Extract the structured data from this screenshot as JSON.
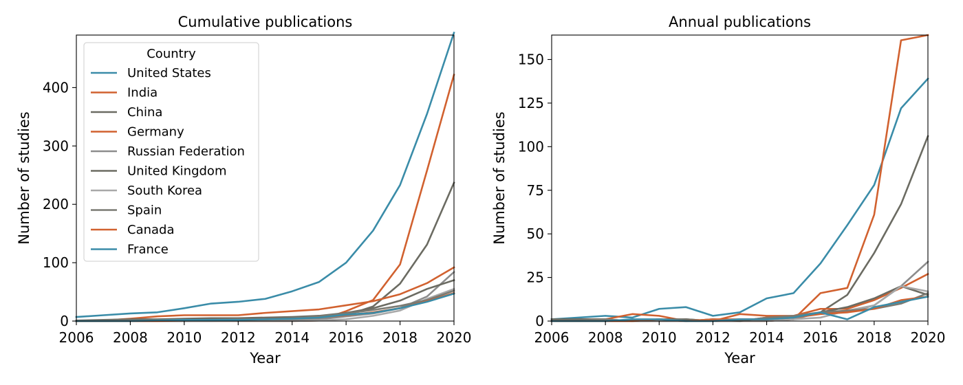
{
  "chart_data": [
    {
      "type": "line",
      "title": "Cumulative publications",
      "xlabel": "Year",
      "ylabel": "Number of studies",
      "xlim": [
        2006,
        2020
      ],
      "ylim": [
        0,
        490
      ],
      "xticks": [
        2006,
        2008,
        2010,
        2012,
        2014,
        2016,
        2018,
        2020
      ],
      "yticks": [
        0,
        100,
        200,
        300,
        400
      ],
      "legend": {
        "title": "Country",
        "position": "upper-left"
      },
      "grid": false,
      "x": [
        2006,
        2007,
        2008,
        2009,
        2010,
        2011,
        2012,
        2013,
        2014,
        2015,
        2016,
        2017,
        2018,
        2019,
        2020
      ],
      "series": [
        {
          "name": "United States",
          "color": "#3a8ca8",
          "values": [
            7,
            10,
            13,
            15,
            22,
            30,
            33,
            38,
            51,
            67,
            100,
            155,
            233,
            355,
            494
          ]
        },
        {
          "name": "India",
          "color": "#d1612f",
          "values": [
            0,
            0,
            0,
            0,
            0,
            0,
            0,
            0,
            0,
            1,
            17,
            36,
            97,
            258,
            422
          ]
        },
        {
          "name": "China",
          "color": "#6b6b62",
          "values": [
            0,
            0,
            0,
            0,
            0,
            1,
            1,
            1,
            3,
            5,
            10,
            25,
            64,
            131,
            237
          ]
        },
        {
          "name": "Germany",
          "color": "#d1612f",
          "values": [
            0,
            1,
            4,
            8,
            10,
            10,
            10,
            14,
            17,
            20,
            27,
            34,
            46,
            65,
            92
          ]
        },
        {
          "name": "Russian Federation",
          "color": "#8c8c8c",
          "values": [
            0,
            0,
            0,
            0,
            0,
            0,
            1,
            1,
            2,
            3,
            8,
            13,
            22,
            42,
            84
          ]
        },
        {
          "name": "United Kingdom",
          "color": "#6b6b62",
          "values": [
            1,
            2,
            3,
            3,
            4,
            5,
            5,
            6,
            7,
            9,
            14,
            22,
            35,
            55,
            70
          ]
        },
        {
          "name": "South Korea",
          "color": "#a8a8a8",
          "values": [
            0,
            0,
            0,
            0,
            0,
            0,
            0,
            0,
            0,
            1,
            3,
            9,
            18,
            38,
            55
          ]
        },
        {
          "name": "Spain",
          "color": "#7a7a72",
          "values": [
            0,
            0,
            1,
            1,
            2,
            2,
            3,
            3,
            5,
            8,
            13,
            19,
            26,
            36,
            52
          ]
        },
        {
          "name": "Canada",
          "color": "#d1612f",
          "values": [
            0,
            0,
            0,
            0,
            1,
            1,
            2,
            3,
            4,
            6,
            10,
            15,
            22,
            34,
            48
          ]
        },
        {
          "name": "France",
          "color": "#3a8ca8",
          "values": [
            0,
            0,
            0,
            1,
            2,
            2,
            2,
            3,
            4,
            6,
            11,
            14,
            22,
            33,
            47
          ]
        }
      ]
    },
    {
      "type": "line",
      "title": "Annual publications",
      "xlabel": "Year",
      "ylabel": "Number of studies",
      "xlim": [
        2006,
        2020
      ],
      "ylim": [
        0,
        164
      ],
      "xticks": [
        2006,
        2008,
        2010,
        2012,
        2014,
        2016,
        2018,
        2020
      ],
      "yticks": [
        0,
        25,
        50,
        75,
        100,
        125,
        150
      ],
      "grid": false,
      "x": [
        2006,
        2007,
        2008,
        2009,
        2010,
        2011,
        2012,
        2013,
        2014,
        2015,
        2016,
        2017,
        2018,
        2019,
        2020
      ],
      "series": [
        {
          "name": "United States",
          "color": "#3a8ca8",
          "values": [
            1,
            2,
            3,
            2,
            7,
            8,
            3,
            5,
            13,
            16,
            33,
            55,
            78,
            122,
            139
          ]
        },
        {
          "name": "India",
          "color": "#d1612f",
          "values": [
            0,
            0,
            0,
            0,
            0,
            0,
            0,
            0,
            0,
            1,
            16,
            19,
            61,
            161,
            164
          ]
        },
        {
          "name": "China",
          "color": "#6b6b62",
          "values": [
            0,
            0,
            0,
            0,
            0,
            1,
            0,
            0,
            2,
            2,
            5,
            15,
            39,
            67,
            106
          ]
        },
        {
          "name": "Germany",
          "color": "#d1612f",
          "values": [
            0,
            1,
            1,
            4,
            3,
            0,
            0,
            4,
            3,
            3,
            7,
            7,
            12,
            19,
            27
          ]
        },
        {
          "name": "Russian Federation",
          "color": "#8c8c8c",
          "values": [
            0,
            0,
            0,
            0,
            0,
            0,
            1,
            0,
            1,
            1,
            5,
            5,
            9,
            20,
            34
          ]
        },
        {
          "name": "United Kingdom",
          "color": "#6b6b62",
          "values": [
            1,
            1,
            1,
            0,
            1,
            1,
            0,
            1,
            1,
            2,
            5,
            8,
            13,
            20,
            15
          ]
        },
        {
          "name": "South Korea",
          "color": "#a8a8a8",
          "values": [
            0,
            0,
            0,
            0,
            0,
            0,
            0,
            0,
            0,
            1,
            2,
            6,
            9,
            20,
            17
          ]
        },
        {
          "name": "Spain",
          "color": "#7a7a72",
          "values": [
            0,
            0,
            1,
            0,
            1,
            0,
            1,
            0,
            2,
            3,
            5,
            6,
            7,
            10,
            16
          ]
        },
        {
          "name": "Canada",
          "color": "#d1612f",
          "values": [
            0,
            0,
            0,
            0,
            1,
            0,
            1,
            1,
            1,
            2,
            4,
            5,
            7,
            12,
            14
          ]
        },
        {
          "name": "France",
          "color": "#3a8ca8",
          "values": [
            0,
            0,
            0,
            1,
            1,
            0,
            0,
            1,
            1,
            2,
            5,
            1,
            8,
            11,
            14
          ]
        }
      ]
    }
  ]
}
